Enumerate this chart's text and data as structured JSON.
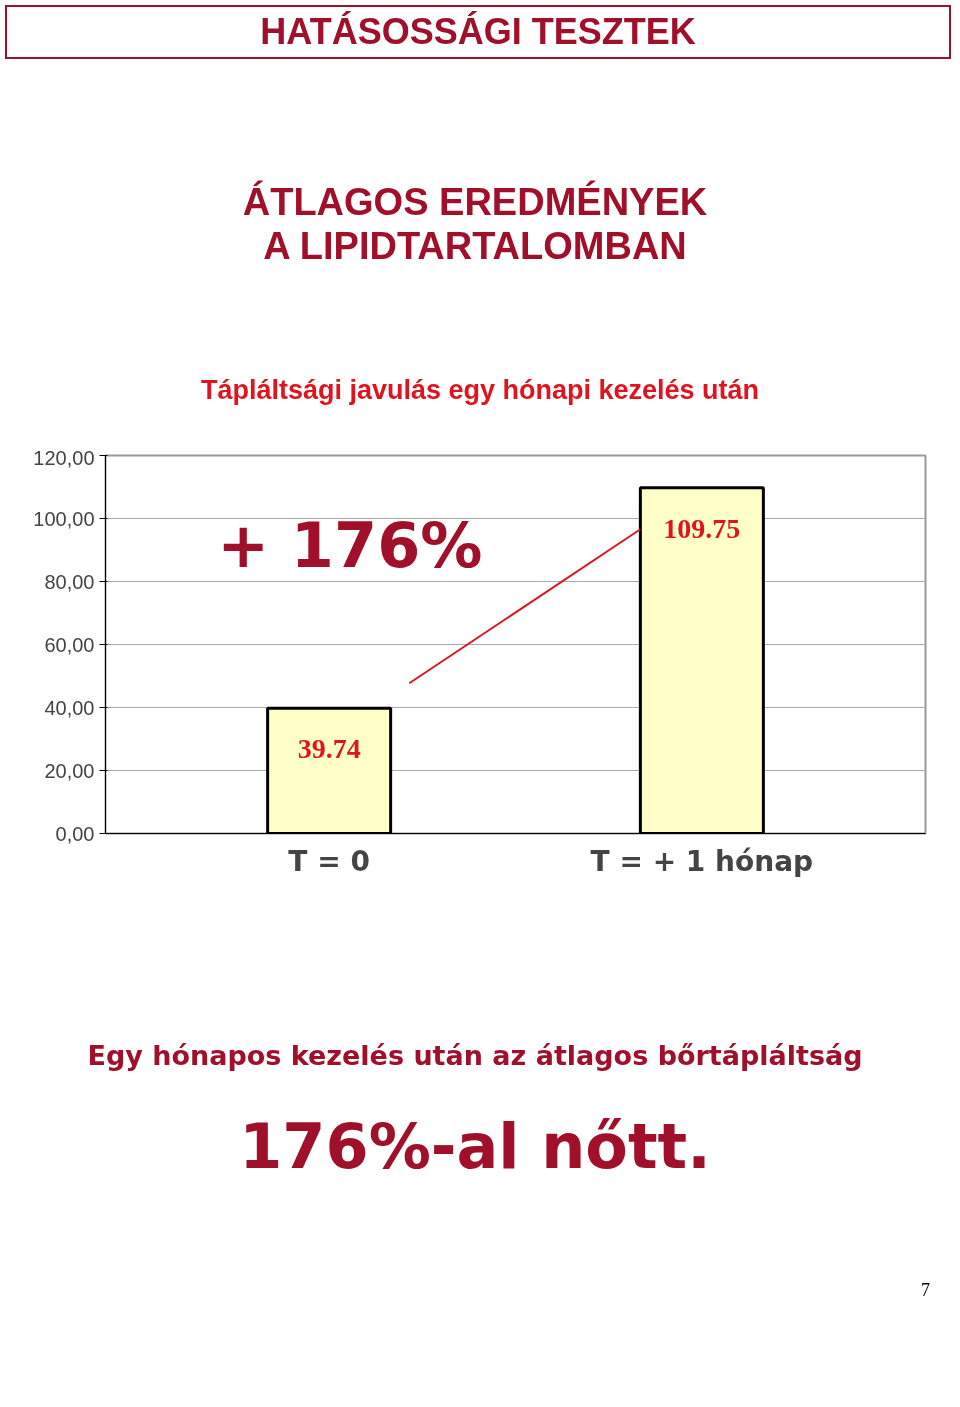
{
  "chart_data": {
    "type": "bar",
    "title": "HATÁSOSSÁGI TESZTEK",
    "subtitle": "ÁTLAGOS EREDMÉNYEK\nA LIPIDTARTALOMBAN",
    "categories": [
      "T = 0",
      "T = + 1 hónap"
    ],
    "values": [
      39.74,
      109.75
    ],
    "color": "#ffffc8",
    "data_labels": true,
    "ylim": [
      0,
      120
    ],
    "yticks": [
      {
        "value": 0,
        "label": "0,00"
      },
      {
        "value": 20,
        "label": "20,00"
      },
      {
        "value": 40,
        "label": "40,00"
      },
      {
        "value": 60,
        "label": "60,00"
      },
      {
        "value": 80,
        "label": "80,00"
      },
      {
        "value": 100,
        "label": "100,00"
      },
      {
        "value": 120,
        "label": "120,00"
      }
    ],
    "grid": "y",
    "annotations": [
      "Tápláltsági javulás egy hónapi kezelés után",
      "+ 176%",
      "Egy hónapos kezelés után az átlagos bőrtápláltság",
      "176%-al nőtt.",
      "7"
    ]
  }
}
